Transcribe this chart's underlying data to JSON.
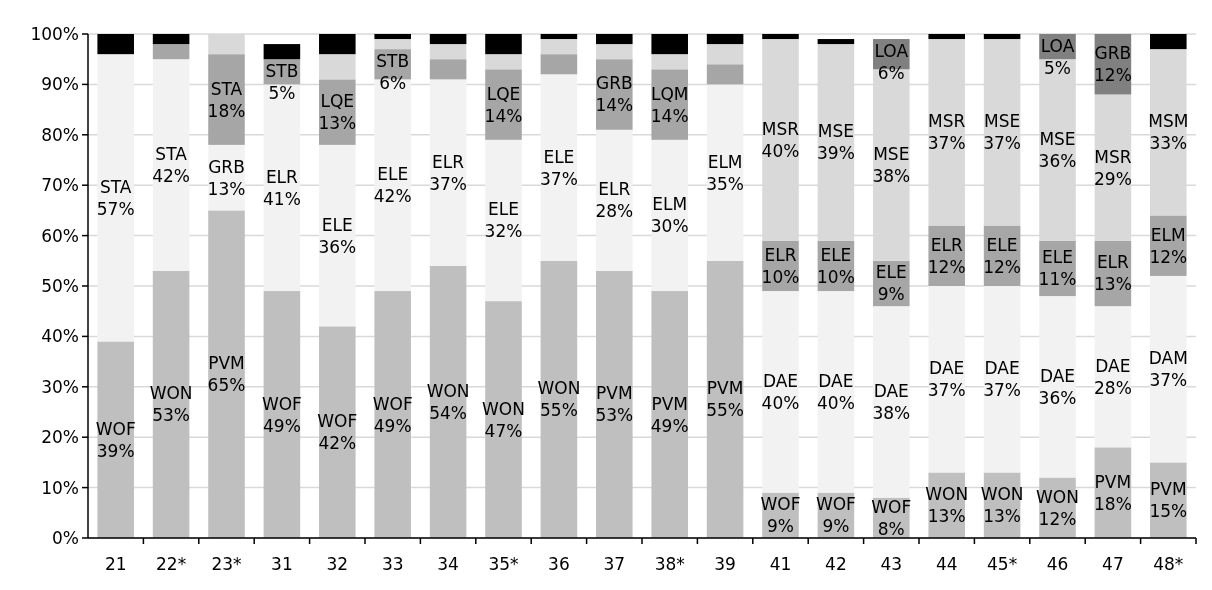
{
  "chart_data": {
    "type": "bar",
    "stacked": true,
    "categories": [
      "21",
      "22*",
      "23*",
      "31",
      "32",
      "33",
      "34",
      "35*",
      "36",
      "37",
      "38*",
      "39",
      "41",
      "42",
      "43",
      "44",
      "45*",
      "46",
      "47",
      "48*"
    ],
    "ylim": [
      0,
      100
    ],
    "yticks": [
      {
        "value": 0,
        "label": "0%"
      },
      {
        "value": 10,
        "label": "10%"
      },
      {
        "value": 20,
        "label": "20%"
      },
      {
        "value": 30,
        "label": "30%"
      },
      {
        "value": 40,
        "label": "40%"
      },
      {
        "value": 50,
        "label": "50%"
      },
      {
        "value": 60,
        "label": "60%"
      },
      {
        "value": 70,
        "label": "70%"
      },
      {
        "value": 80,
        "label": "80%"
      },
      {
        "value": 90,
        "label": "90%"
      },
      {
        "value": 100,
        "label": "100%"
      }
    ],
    "grid": "y",
    "series": [
      {
        "color": "#bfbfbf",
        "values": [
          39,
          53,
          65,
          49,
          42,
          49,
          54,
          47,
          55,
          53,
          49,
          55,
          9,
          9,
          8,
          13,
          13,
          12,
          18,
          15
        ],
        "value_labels": [
          "WOF 39%",
          "WON 53%",
          "PVM 65%",
          "WOF 49%",
          "WOF 42%",
          "WOF 49%",
          "WON 54%",
          "WON 47%",
          "WON 55%",
          "PVM 53%",
          "PVM 49%",
          "PVM 55%",
          "WOF 9%",
          "WOF 9%",
          "WOF 8%",
          "WON 13%",
          "WON 13%",
          "WON 12%",
          "PVM 18%",
          "PVM 15%"
        ]
      },
      {
        "color": "#f2f2f2",
        "values": [
          57,
          42,
          13,
          41,
          36,
          42,
          37,
          32,
          37,
          28,
          30,
          35,
          40,
          40,
          38,
          37,
          37,
          36,
          28,
          37
        ],
        "value_labels": [
          "STA 57%",
          "STA 42%",
          "GRB 13%",
          "ELR 41%",
          "ELE 36%",
          "ELE 42%",
          "ELR 37%",
          "ELE 32%",
          "ELE 37%",
          "ELR 28%",
          "ELM 30%",
          "ELM 35%",
          "DAE 40%",
          "DAE 40%",
          "DAE 38%",
          "DAE 37%",
          "DAE 37%",
          "DAE 36%",
          "DAE 28%",
          "DAM 37%"
        ]
      },
      {
        "color": "#a6a6a6",
        "values": [
          null,
          3,
          18,
          5,
          13,
          6,
          4,
          14,
          4,
          14,
          14,
          4,
          10,
          10,
          9,
          12,
          12,
          11,
          13,
          12
        ],
        "value_labels": [
          null,
          null,
          "STA 18%",
          "STB 5%",
          "LQE 13%",
          "STB 6%",
          null,
          "LQE 14%",
          null,
          "GRB 14%",
          "LQM 14%",
          null,
          "ELR 10%",
          "ELE 10%",
          "ELE 9%",
          "ELR 12%",
          "ELE 12%",
          "ELE 11%",
          "ELR 13%",
          "ELM 12%"
        ]
      },
      {
        "color": "#d9d9d9",
        "values": [
          null,
          null,
          4,
          null,
          5,
          2,
          3,
          3,
          3,
          3,
          3,
          4,
          40,
          39,
          38,
          37,
          37,
          36,
          29,
          33
        ],
        "value_labels": [
          null,
          null,
          null,
          null,
          null,
          null,
          null,
          null,
          null,
          null,
          null,
          null,
          "MSR 40%",
          "MSE 39%",
          "MSE 38%",
          "MSR 37%",
          "MSE 37%",
          "MSE 36%",
          "MSR 29%",
          "MSM 33%"
        ]
      },
      {
        "color": "#000000",
        "values": [
          4,
          2,
          null,
          3,
          4,
          1,
          2,
          4,
          1,
          2,
          4,
          2,
          1,
          1,
          null,
          1,
          1,
          null,
          null,
          3
        ]
      },
      {
        "color": "#808080",
        "values": [
          null,
          null,
          null,
          null,
          null,
          null,
          null,
          null,
          null,
          null,
          null,
          null,
          null,
          null,
          6,
          null,
          null,
          5,
          12,
          null
        ],
        "value_labels": [
          null,
          null,
          null,
          null,
          null,
          null,
          null,
          null,
          null,
          null,
          null,
          null,
          null,
          null,
          "LOA 6%",
          null,
          null,
          "LOA 5%",
          "GRB 12%",
          null
        ]
      }
    ]
  }
}
